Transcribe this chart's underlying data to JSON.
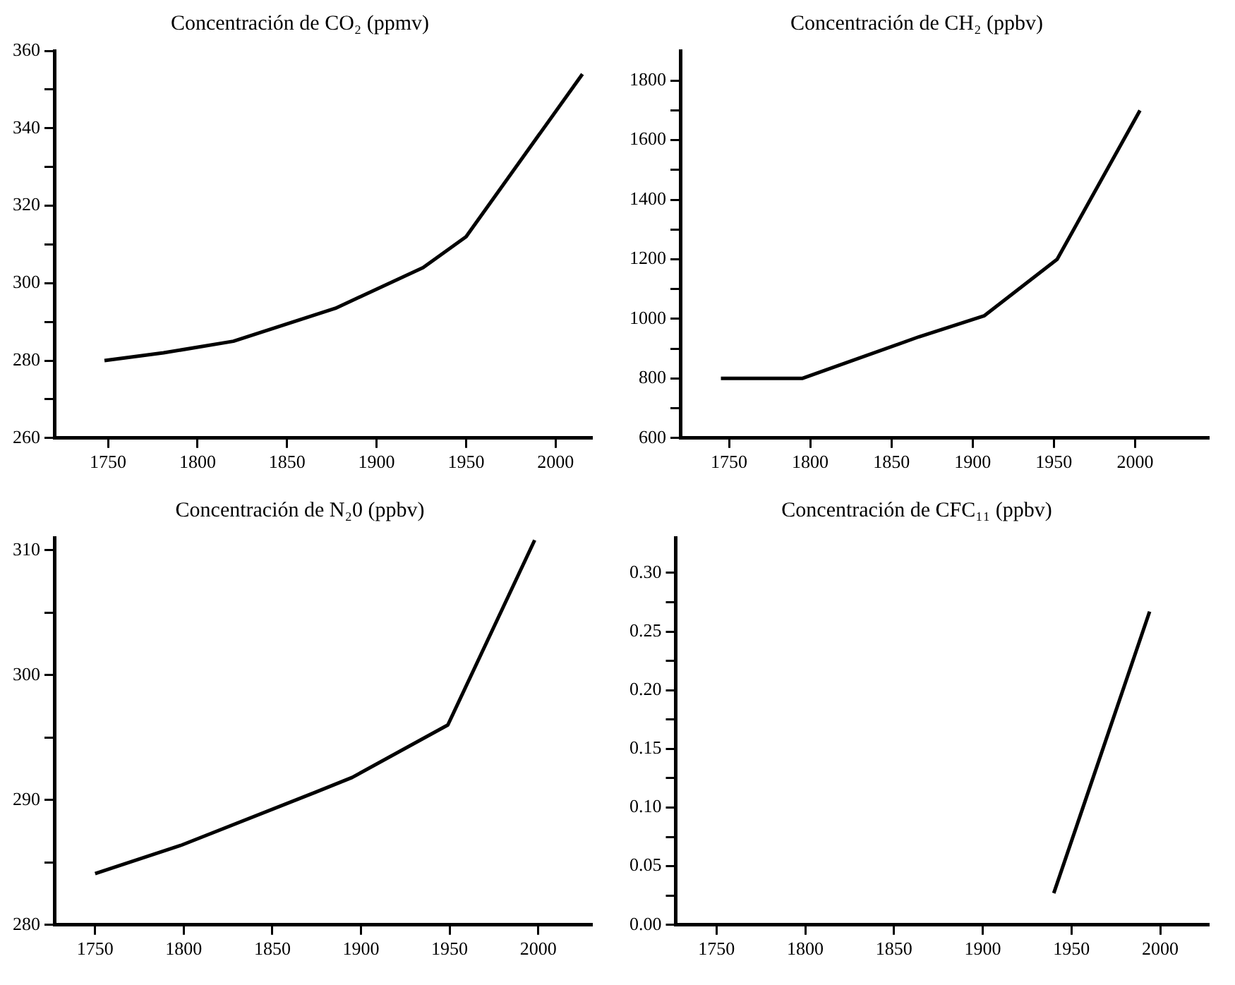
{
  "chart_data": [
    {
      "type": "line",
      "title": "Concentración de CO₂ (ppmv)",
      "x": [
        1748,
        1781,
        1820,
        1877,
        1926,
        1950,
        2015
      ],
      "values": [
        280,
        282,
        285,
        293.5,
        304,
        312,
        354
      ],
      "color": "#000000",
      "xlim": [
        1720,
        2020
      ],
      "xticks": [
        1750,
        1800,
        1850,
        1900,
        1950,
        2000
      ],
      "ylim": [
        260,
        360
      ],
      "yticks": [
        260,
        {
          "value": 270,
          "label": null
        },
        280,
        {
          "value": 290,
          "label": null
        },
        300,
        {
          "value": 310,
          "label": null
        },
        320,
        {
          "value": 330,
          "label": null
        },
        340,
        {
          "value": 350,
          "label": null
        },
        360
      ],
      "grid": false,
      "legend": false
    },
    {
      "type": "line",
      "title": "Concentración de CH₂ (ppbv)",
      "x": [
        1745,
        1795,
        1867,
        1907,
        1952,
        2003
      ],
      "values": [
        800,
        800,
        940,
        1010,
        1200,
        1700
      ],
      "color": "#000000",
      "xlim": [
        1720,
        2045
      ],
      "xticks": [
        1750,
        1800,
        1850,
        1900,
        1950,
        2000
      ],
      "ylim": [
        600,
        1900
      ],
      "yticks": [
        600,
        {
          "value": 700,
          "label": null
        },
        800,
        {
          "value": 900,
          "label": null
        },
        1000,
        {
          "value": 1100,
          "label": null
        },
        1200,
        {
          "value": 1300,
          "label": null
        },
        1400,
        {
          "value": 1500,
          "label": null
        },
        1600,
        {
          "value": 1700,
          "label": null
        },
        1800
      ],
      "grid": false,
      "legend": false
    },
    {
      "type": "line",
      "title": "Concentración de N₂0 (ppbv)",
      "x": [
        1750,
        1799,
        1874,
        1895,
        1949,
        1998
      ],
      "values": [
        284.1,
        286.4,
        290.6,
        291.8,
        296,
        310.8
      ],
      "color": "#000000",
      "xlim": [
        1727,
        2030
      ],
      "xticks": [
        1750,
        1800,
        1850,
        1900,
        1950,
        2000
      ],
      "ylim": [
        280,
        311
      ],
      "yticks": [
        280,
        {
          "value": 285,
          "label": null
        },
        290,
        {
          "value": 295,
          "label": null
        },
        300,
        {
          "value": 305,
          "label": null
        },
        310
      ],
      "grid": false,
      "legend": false
    },
    {
      "type": "line",
      "title": "Concentración de CFC₁₁ (ppbv)",
      "x": [
        1940,
        1994
      ],
      "values": [
        0.027,
        0.267
      ],
      "color": "#000000",
      "xlim": [
        1727,
        2027
      ],
      "xticks": [
        1750,
        1800,
        1850,
        1900,
        1950,
        2000
      ],
      "ylim": [
        0,
        0.33
      ],
      "yticks": [
        {
          "value": 0,
          "label": "0.00"
        },
        {
          "value": 0.025,
          "label": null
        },
        {
          "value": 0.05,
          "label": "0.05"
        },
        {
          "value": 0.075,
          "label": null
        },
        {
          "value": 0.1,
          "label": "0.10"
        },
        {
          "value": 0.125,
          "label": null
        },
        {
          "value": 0.15,
          "label": "0.15"
        },
        {
          "value": 0.175,
          "label": null
        },
        {
          "value": 0.2,
          "label": "0.20"
        },
        {
          "value": 0.225,
          "label": null
        },
        {
          "value": 0.25,
          "label": "0.25"
        },
        {
          "value": 0.275,
          "label": null
        },
        {
          "value": 0.3,
          "label": "0.30"
        }
      ],
      "grid": false,
      "legend": false
    }
  ]
}
